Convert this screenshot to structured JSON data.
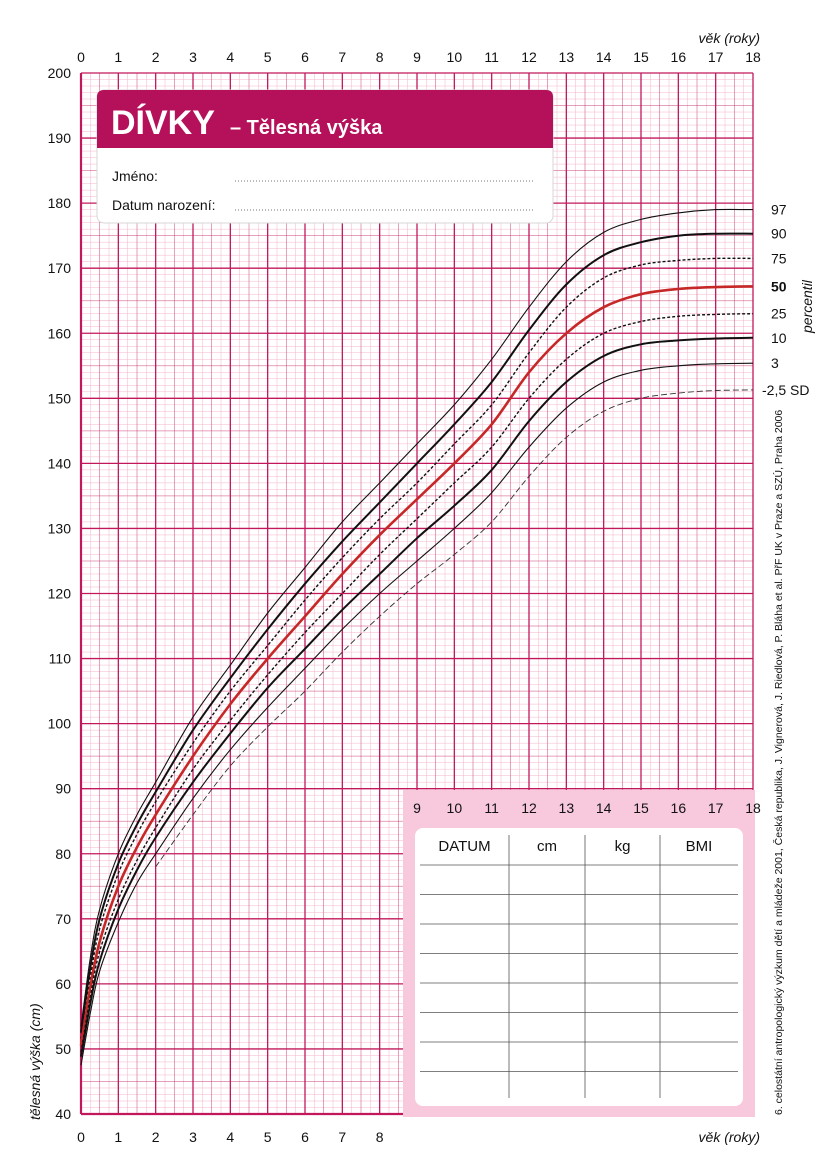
{
  "header": {
    "title_bold": "DÍVKY",
    "title_rest": "– Tělesná výška",
    "field_name": "Jméno:",
    "field_birth": "Datum narození:"
  },
  "colors": {
    "grid_major": "#c2185b",
    "grid_minor": "#f3b6cb",
    "brand": "#b5105a",
    "median": "#c62828",
    "sd_label": "#2e7d32",
    "table_bg": "#f8c9dc"
  },
  "side_labels": {
    "percentil": "percentil",
    "sd": "-2,5 SD"
  },
  "footnote": "6. celostátní antropologický výzkum dětí a mládeže 2001, Česká republika, J. Vignerová, J. Riedlová, P. Bláha et al. PřF UK v Praze a SZÚ, Praha 2006",
  "record_table": {
    "headers": [
      "DATUM",
      "cm",
      "kg",
      "BMI"
    ],
    "row_count": 8
  },
  "chart_data": {
    "type": "line",
    "title": "DÍVKY – Tělesná výška",
    "xlabel": "věk (roky)",
    "ylabel": "tělesná výška (cm)",
    "xlim": [
      0,
      18
    ],
    "ylim": [
      40,
      200
    ],
    "x_ticks_top": [
      "0",
      "1",
      "2",
      "3",
      "4",
      "5",
      "6",
      "7",
      "8",
      "9",
      "10",
      "11",
      "12",
      "13",
      "14",
      "15",
      "16",
      "17",
      "18"
    ],
    "x_ticks_bottom": [
      "0",
      "1",
      "2",
      "3",
      "4",
      "5",
      "6",
      "7",
      "8"
    ],
    "x_ticks_inner": [
      "9",
      "10",
      "11",
      "12",
      "13",
      "14",
      "15",
      "16",
      "17",
      "18"
    ],
    "y_ticks": [
      "40",
      "50",
      "60",
      "70",
      "80",
      "90",
      "100",
      "110",
      "120",
      "130",
      "140",
      "150",
      "160",
      "170",
      "180",
      "190",
      "200"
    ],
    "grid": true,
    "x": [
      0,
      0.25,
      0.5,
      1,
      1.5,
      2,
      3,
      4,
      5,
      6,
      7,
      8,
      9,
      10,
      11,
      12,
      13,
      14,
      15,
      16,
      17,
      18
    ],
    "series": [
      {
        "name": "97",
        "style": "thin",
        "values": [
          53.5,
          64,
          71.5,
          80,
          86,
          91,
          101,
          109,
          117,
          124,
          131,
          137,
          143,
          149,
          156,
          164,
          171,
          175.5,
          177.5,
          178.5,
          179,
          179
        ]
      },
      {
        "name": "90",
        "style": "bold",
        "values": [
          52.5,
          62.5,
          70,
          78.5,
          84.5,
          89.5,
          99,
          107,
          114.5,
          121.5,
          128,
          134,
          140,
          146,
          152.5,
          160.5,
          167.5,
          172,
          174,
          175,
          175.3,
          175.3
        ]
      },
      {
        "name": "75",
        "style": "dashed",
        "values": [
          51.5,
          61,
          68.5,
          77,
          83,
          88,
          97,
          105,
          112,
          119,
          125.5,
          131.5,
          137,
          143,
          149,
          157,
          164,
          168.5,
          170.5,
          171.2,
          171.5,
          171.5
        ]
      },
      {
        "name": "50",
        "style": "median",
        "values": [
          50.5,
          59.5,
          66.5,
          75,
          81,
          86,
          95,
          103,
          110,
          116.5,
          123,
          129,
          134.5,
          140,
          146,
          154,
          160,
          164,
          166,
          166.8,
          167.1,
          167.2
        ]
      },
      {
        "name": "25",
        "style": "dashed",
        "values": [
          49.5,
          58,
          65,
          73,
          79,
          84,
          93,
          100.5,
          107.5,
          114,
          120,
          126,
          131.5,
          137,
          142.5,
          150,
          156,
          160,
          161.8,
          162.6,
          162.9,
          163
        ]
      },
      {
        "name": "10",
        "style": "bold",
        "values": [
          48.8,
          57,
          63.5,
          71.5,
          77.5,
          82.5,
          91,
          98.5,
          105.5,
          111.5,
          117.5,
          123,
          128.5,
          133.5,
          139,
          146.5,
          152.5,
          156.5,
          158.3,
          158.9,
          159.2,
          159.3
        ]
      },
      {
        "name": "3",
        "style": "thin",
        "values": [
          47.5,
          55.5,
          62,
          69.5,
          75.5,
          80,
          88.5,
          96,
          102.5,
          108.5,
          114.5,
          120,
          125,
          130,
          135.5,
          142.5,
          148.5,
          152.5,
          154.3,
          155,
          155.3,
          155.4
        ]
      },
      {
        "name": "-2,5 SD",
        "style": "sd",
        "x": [
          2,
          3,
          4,
          5,
          6,
          7,
          8,
          9,
          10,
          11,
          12,
          13,
          14,
          15,
          16,
          17,
          18
        ],
        "values": [
          78,
          86,
          93.5,
          99.5,
          105,
          111,
          116.5,
          121.5,
          126,
          131,
          138,
          144,
          148,
          150,
          150.8,
          151.2,
          151.3
        ]
      }
    ]
  }
}
